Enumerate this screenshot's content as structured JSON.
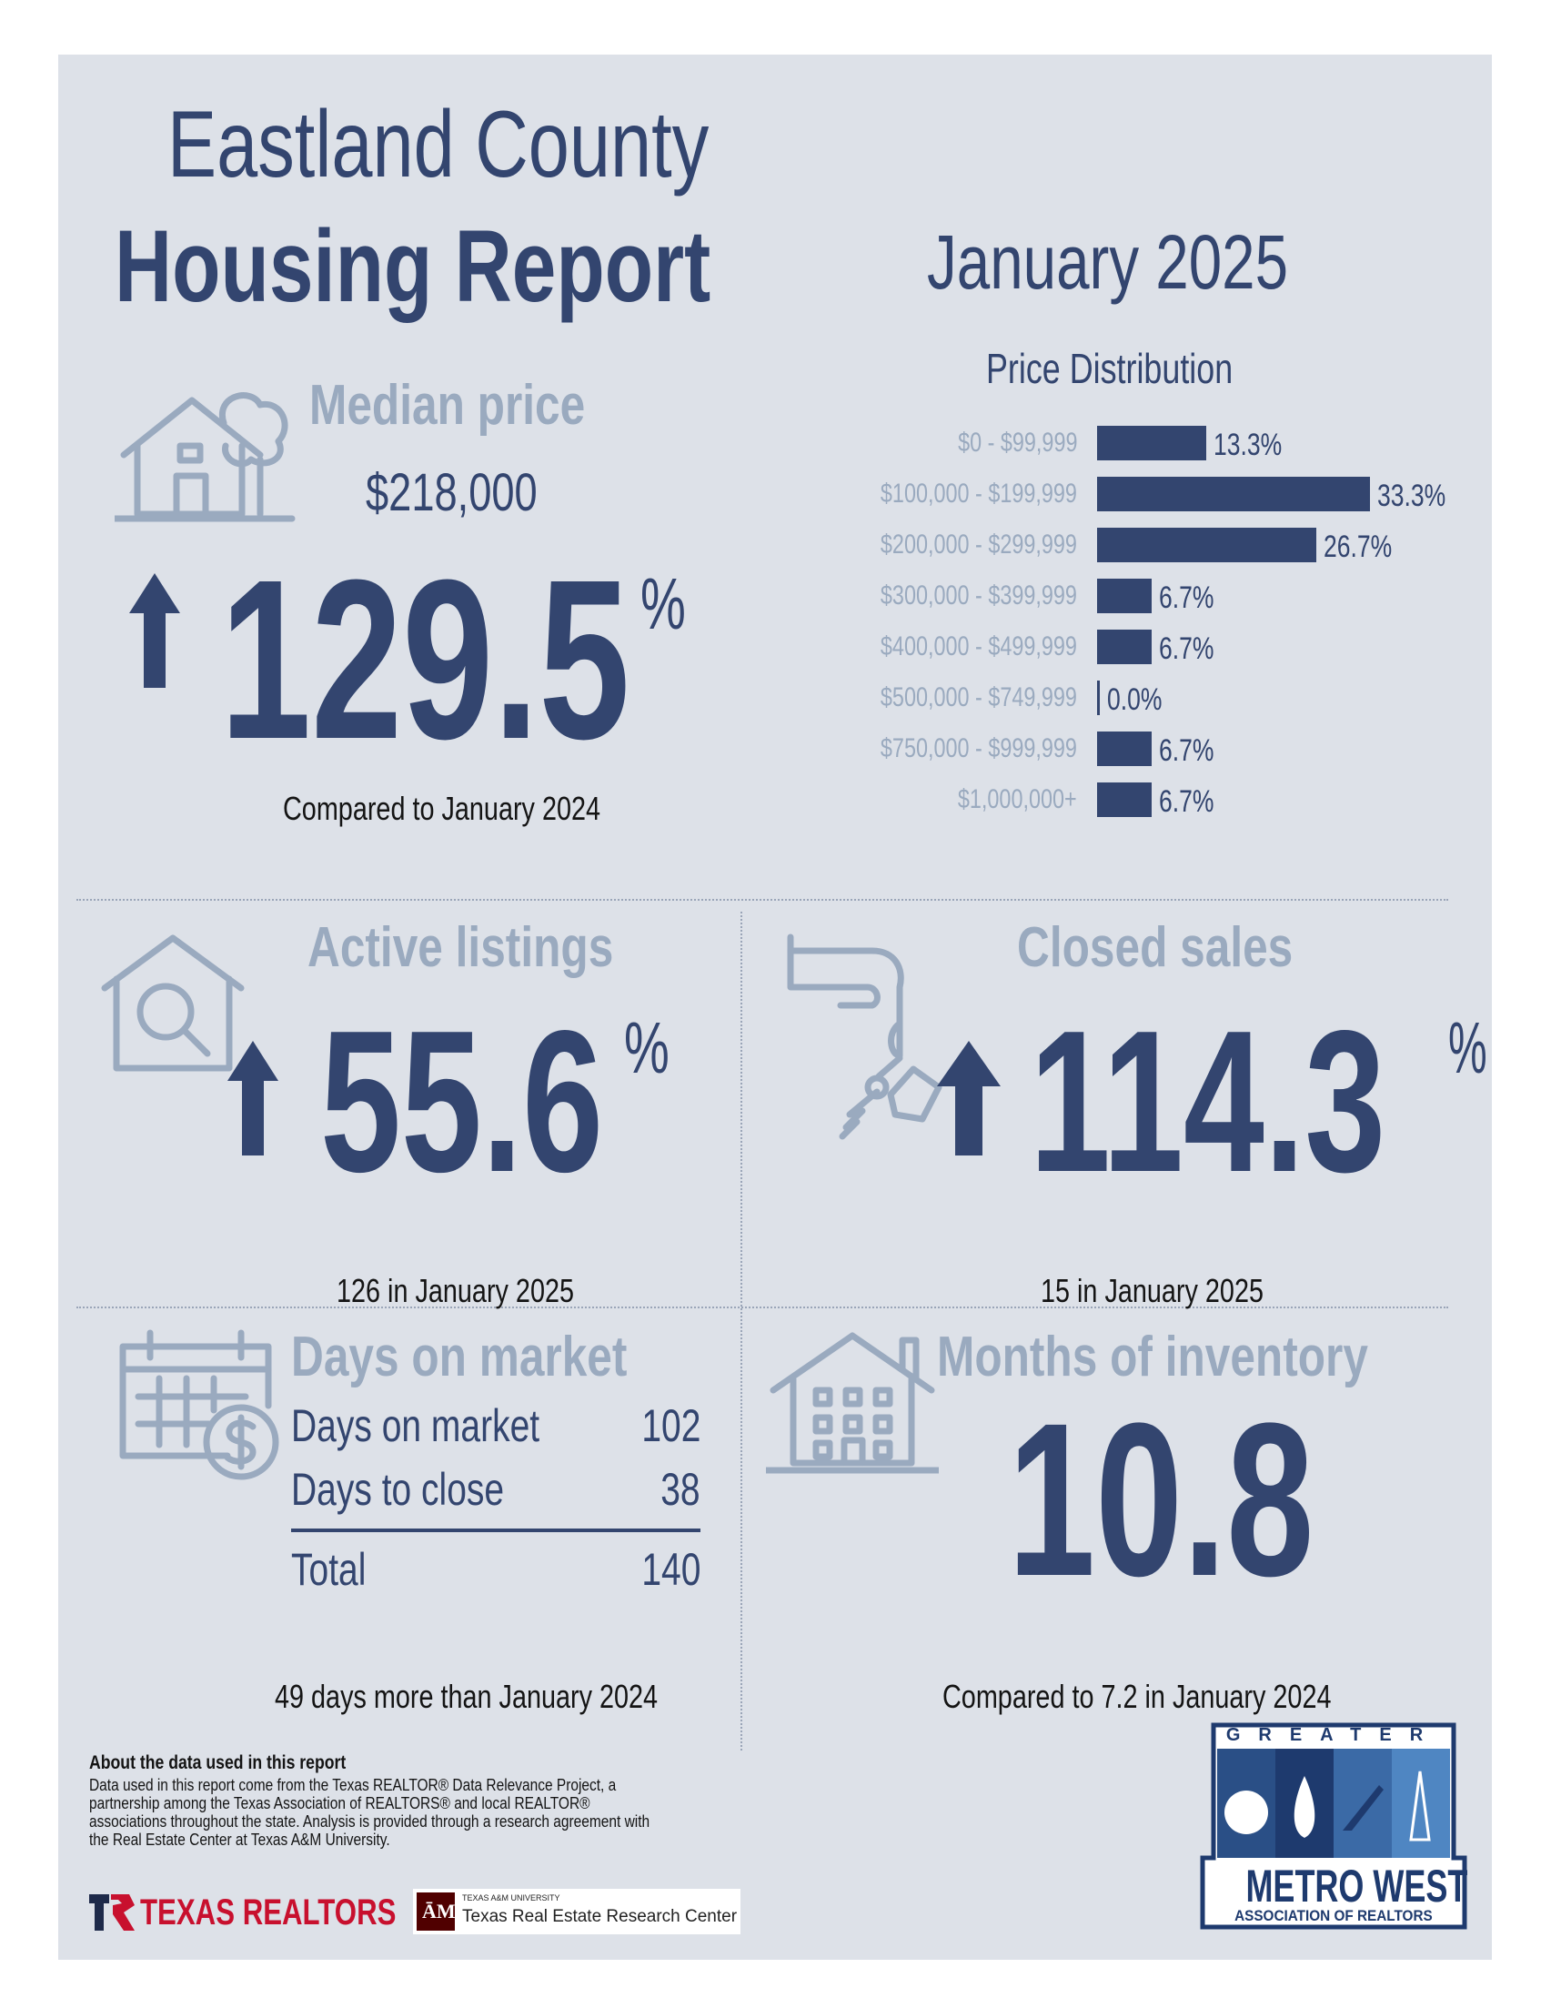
{
  "header": {
    "title_line1": "Eastland County",
    "title_line2": "Housing Report",
    "period": "January 2025"
  },
  "median_price": {
    "title": "Median price",
    "value": "$218,000",
    "change": "129.5",
    "percent_sign": "%",
    "direction": "up",
    "caption": "Compared to January 2024",
    "icon": "house-with-tree-icon"
  },
  "chart_data": {
    "type": "bar",
    "orientation": "horizontal",
    "title": "Price Distribution",
    "categories": [
      "$0 - $99,999",
      "$100,000 - $199,999",
      "$200,000 - $299,999",
      "$300,000 - $399,999",
      "$400,000 - $499,999",
      "$500,000 - $749,999",
      "$750,000 - $999,999",
      "$1,000,000+"
    ],
    "values": [
      13.3,
      33.3,
      26.7,
      6.7,
      6.7,
      0.0,
      6.7,
      6.7
    ],
    "value_labels": [
      "13.3%",
      "33.3%",
      "26.7%",
      "6.7%",
      "6.7%",
      "0.0%",
      "6.7%",
      "6.7%"
    ],
    "color": "#33456f"
  },
  "active_listings": {
    "title": "Active listings",
    "change": "55.6",
    "percent_sign": "%",
    "direction": "up",
    "caption": "126 in January 2025",
    "icon": "house-magnifier-icon"
  },
  "closed_sales": {
    "title": "Closed sales",
    "change": "114.3",
    "percent_sign": "%",
    "direction": "up",
    "caption": "15 in January 2025",
    "icon": "hand-with-keys-icon"
  },
  "days_on_market": {
    "title": "Days on market",
    "rows": [
      {
        "label": "Days on market",
        "value": "102"
      },
      {
        "label": "Days to close",
        "value": "38"
      }
    ],
    "total": {
      "label": "Total",
      "value": "140"
    },
    "caption": "49 days more than January 2024",
    "icon": "calendar-dollar-icon"
  },
  "months_inventory": {
    "title": "Months of inventory",
    "value": "10.8",
    "caption": "Compared to 7.2 in January 2024",
    "icon": "apartment-building-icon"
  },
  "footer": {
    "about_title": "About the data used in this report",
    "about_text": "Data used in this report come from the Texas REALTOR® Data Relevance Project, a partnership among the Texas Association of REALTORS® and local REALTOR® associations throughout the state. Analysis is provided through a research agreement with the Real Estate Center at Texas A&M University.",
    "texas_realtors_logo": "TEXAS REALTORS",
    "tamu_small": "TEXAS A&M UNIVERSITY",
    "tamu_name": "Texas Real Estate Research Center",
    "metro_top": "GREATER",
    "metro_name": "METRO WEST",
    "metro_sub": "ASSOCIATION OF REALTORS"
  },
  "colors": {
    "navy": "#33456f",
    "muted": "#9aaabf",
    "background": "#dde1e8"
  }
}
